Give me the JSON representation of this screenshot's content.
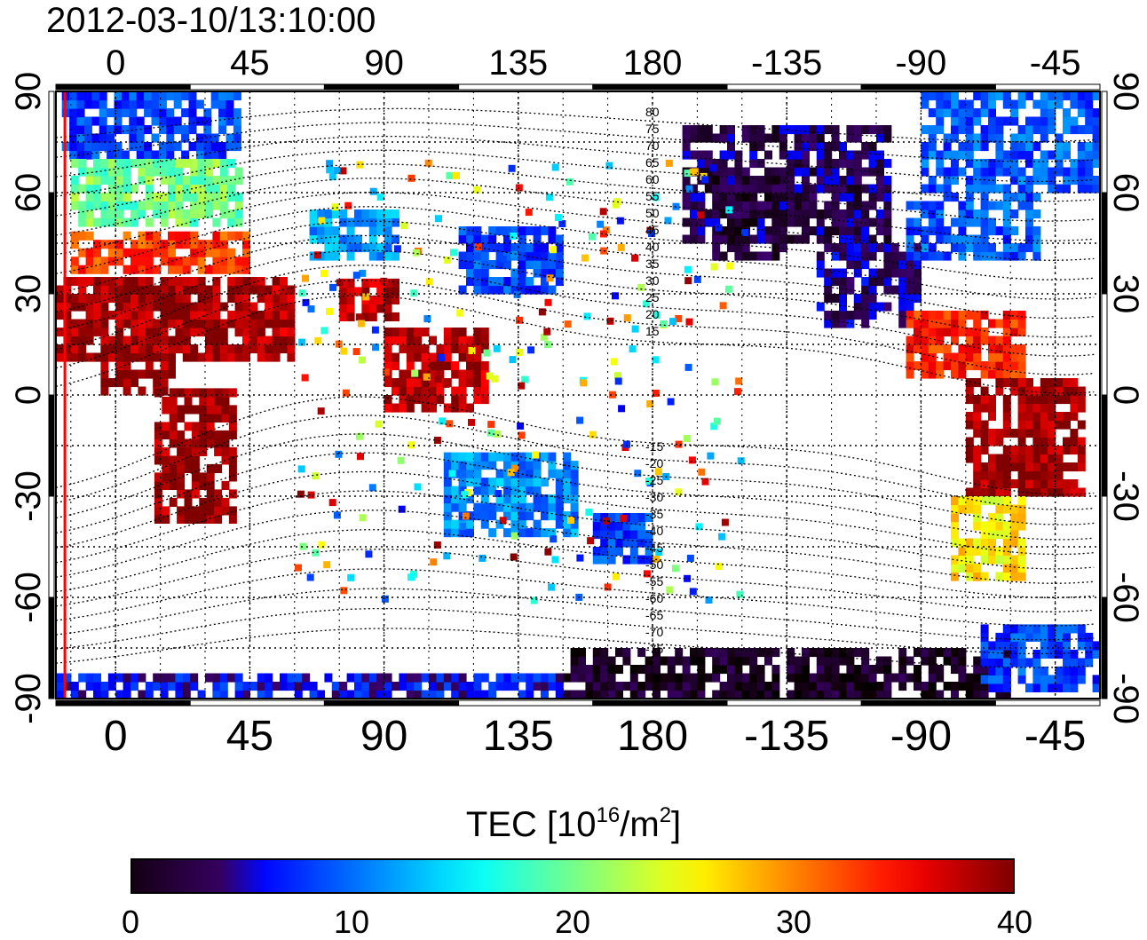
{
  "title": "2012-03-10/13:10:00",
  "map": {
    "top_lon_labels": [
      "0",
      "45",
      "90",
      "135",
      "180",
      "-135",
      "-90",
      "-45"
    ],
    "bottom_lon_labels": [
      "0",
      "45",
      "90",
      "135",
      "180",
      "-135",
      "-90",
      "-45"
    ],
    "lat_labels": [
      "90",
      "60",
      "30",
      "0",
      "-30",
      "-60",
      "-90"
    ],
    "contour_labels": [
      "80",
      "75",
      "70",
      "65",
      "60",
      "55",
      "50",
      "45",
      "40",
      "35",
      "30",
      "25",
      "20",
      "15",
      "-15",
      "-20",
      "-25",
      "-30",
      "-35",
      "-40",
      "-45",
      "-50",
      "-55",
      "-60",
      "-65",
      "-70",
      "-75"
    ],
    "lon_range": [
      -20,
      330
    ],
    "lat_range": [
      -90,
      90
    ],
    "lon_ticks": [
      0,
      45,
      90,
      135,
      180,
      225,
      270,
      315
    ],
    "lat_ticks": [
      90,
      60,
      30,
      0,
      -30,
      -60,
      -90
    ],
    "contour_lats": [
      80,
      75,
      70,
      65,
      60,
      55,
      50,
      45,
      40,
      35,
      30,
      25,
      20,
      15,
      -15,
      -20,
      -25,
      -30,
      -35,
      -40,
      -45,
      -50,
      -55,
      -60,
      -65,
      -70,
      -75
    ],
    "red_line_lon": -17,
    "tec_regions": [
      {
        "name": "europe-high",
        "lon": [
          -18,
          40
        ],
        "lat": [
          70,
          88
        ],
        "tec": 8
      },
      {
        "name": "europe-mid",
        "lon": [
          -15,
          42
        ],
        "lat": [
          50,
          68
        ],
        "tec": 20
      },
      {
        "name": "europe-low",
        "lon": [
          -15,
          45
        ],
        "lat": [
          36,
          48
        ],
        "tec": 33
      },
      {
        "name": "north-africa",
        "lon": [
          -20,
          60
        ],
        "lat": [
          10,
          35
        ],
        "tec": 39
      },
      {
        "name": "west-africa",
        "lon": [
          -5,
          20
        ],
        "lat": [
          0,
          16
        ],
        "tec": 39
      },
      {
        "name": "south-africa",
        "lon": [
          13,
          40
        ],
        "lat": [
          -38,
          0
        ],
        "tec": 39
      },
      {
        "name": "arabia",
        "lon": [
          40,
          58
        ],
        "lat": [
          15,
          32
        ],
        "tec": 38
      },
      {
        "name": "india",
        "lon": [
          75,
          93
        ],
        "lat": [
          22,
          33
        ],
        "tec": 38
      },
      {
        "name": "se-asia",
        "lon": [
          90,
          125
        ],
        "lat": [
          -5,
          20
        ],
        "tec": 38
      },
      {
        "name": "east-asia",
        "lon": [
          115,
          150
        ],
        "lat": [
          30,
          50
        ],
        "tec": 8
      },
      {
        "name": "central-asia",
        "lon": [
          65,
          95
        ],
        "lat": [
          40,
          55
        ],
        "tec": 12
      },
      {
        "name": "australia",
        "lon": [
          110,
          155
        ],
        "lat": [
          -42,
          -18
        ],
        "tec": 11
      },
      {
        "name": "nz",
        "lon": [
          160,
          180
        ],
        "lat": [
          -50,
          -35
        ],
        "tec": 8
      },
      {
        "name": "n-america-north",
        "lon": [
          190,
          260
        ],
        "lat": [
          45,
          80
        ],
        "tec": 3
      },
      {
        "name": "n-america-mid",
        "lon": [
          235,
          270
        ],
        "lat": [
          20,
          45
        ],
        "tec": 4
      },
      {
        "name": "n-america-east",
        "lon": [
          265,
          310
        ],
        "lat": [
          40,
          60
        ],
        "tec": 9
      },
      {
        "name": "greenland",
        "lon": [
          270,
          330
        ],
        "lat": [
          60,
          88
        ],
        "tec": 9
      },
      {
        "name": "caribbean",
        "lon": [
          265,
          305
        ],
        "lat": [
          5,
          25
        ],
        "tec": 34
      },
      {
        "name": "s-america",
        "lon": [
          285,
          325
        ],
        "lat": [
          -30,
          5
        ],
        "tec": 39
      },
      {
        "name": "s-america-south",
        "lon": [
          280,
          305
        ],
        "lat": [
          -55,
          -30
        ],
        "tec": 26
      },
      {
        "name": "antarctica-west",
        "lon": [
          150,
          300
        ],
        "lat": [
          -90,
          -75
        ],
        "tec": 1
      },
      {
        "name": "antarctica-east",
        "lon": [
          -20,
          150
        ],
        "lat": [
          -90,
          -84
        ],
        "tec": 6
      },
      {
        "name": "south-atlantic-ant",
        "lon": [
          290,
          330
        ],
        "lat": [
          -88,
          -70
        ],
        "tec": 8
      },
      {
        "name": "pacific-north",
        "lon": [
          200,
          225
        ],
        "lat": [
          40,
          65
        ],
        "tec": 2
      }
    ]
  },
  "colorbar": {
    "title_main": "TEC  [10",
    "title_exp": "16",
    "title_mid": "/m",
    "title_exp2": "2",
    "title_end": "]",
    "min": 0,
    "max": 40,
    "ticks": [
      "0",
      "10",
      "20",
      "30",
      "40"
    ],
    "tick_values": [
      0,
      10,
      20,
      30,
      40
    ]
  }
}
